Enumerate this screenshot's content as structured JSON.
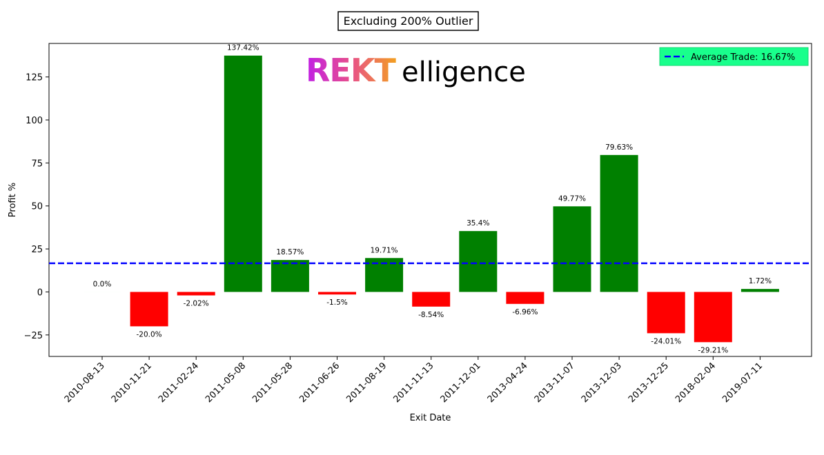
{
  "chart_data": {
    "type": "bar",
    "title": "Excluding 200% Outlier",
    "xlabel": "Exit Date",
    "ylabel": "Profit %",
    "categories": [
      "2010-08-13",
      "2010-11-21",
      "2011-02-24",
      "2011-05-08",
      "2011-05-28",
      "2011-06-26",
      "2011-08-19",
      "2011-11-13",
      "2011-12-01",
      "2013-04-24",
      "2013-11-07",
      "2013-12-03",
      "2013-12-25",
      "2018-02-04",
      "2019-07-11"
    ],
    "values": [
      0.0,
      -20.0,
      -2.02,
      137.42,
      18.57,
      -1.5,
      19.71,
      -8.54,
      35.4,
      -6.96,
      49.77,
      79.63,
      -24.01,
      -29.21,
      1.72
    ],
    "value_labels": [
      "0.0%",
      "-20.0%",
      "-2.02%",
      "137.42%",
      "18.57%",
      "-1.5%",
      "19.71%",
      "-8.54%",
      "35.4%",
      "-6.96%",
      "49.77%",
      "79.63%",
      "-24.01%",
      "-29.21%",
      "1.72%"
    ],
    "yticks": [
      -25,
      0,
      25,
      50,
      75,
      100,
      125
    ],
    "ylim": [
      -37.5,
      144.5
    ],
    "grid": false,
    "average_line": {
      "value": 16.67,
      "label": "Average Trade: 16.67%",
      "color": "#0000ff",
      "style": "dashed"
    },
    "legend": {
      "placement": "top-right",
      "background": "#19ff8c"
    },
    "positive_color": "#008000",
    "negative_color": "#ff0000"
  },
  "watermark": {
    "text_rekt": "REKT",
    "text_rest": "elligence",
    "gradient": [
      "#c01ee6",
      "#e8508a",
      "#f3a020"
    ]
  }
}
